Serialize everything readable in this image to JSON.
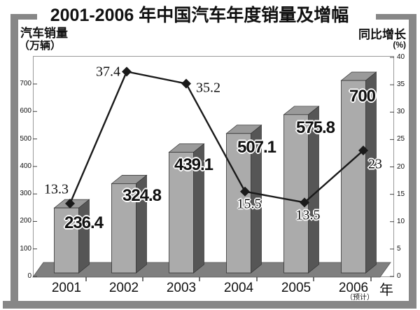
{
  "title": "2001-2006 年中国汽车年度销量及增幅",
  "left_axis": {
    "title": "汽车销量",
    "unit": "（万辆）",
    "ticks": [
      0,
      100,
      200,
      300,
      400,
      500,
      600,
      700
    ]
  },
  "right_axis": {
    "title": "同比增长",
    "unit": "(%)",
    "ticks": [
      0,
      5,
      10,
      15,
      20,
      25,
      30,
      35,
      40
    ]
  },
  "x_axis": {
    "suffix": "年",
    "forecast_note": "（预计）"
  },
  "chart_data": {
    "type": "combo",
    "categories": [
      "2001",
      "2002",
      "2003",
      "2004",
      "2005",
      "2006"
    ],
    "series": [
      {
        "name": "汽车销量（万辆）",
        "type": "bar",
        "axis": "left",
        "values": [
          236.4,
          324.8,
          439.1,
          507.1,
          575.8,
          700
        ],
        "labels": [
          "236.4",
          "324.8",
          "439.1",
          "507.1",
          "575.8",
          "700"
        ]
      },
      {
        "name": "同比增长(%)",
        "type": "line",
        "axis": "right",
        "values": [
          13.3,
          37.4,
          35.2,
          15.5,
          13.5,
          23
        ],
        "labels": [
          "13.3",
          "37.4",
          "35.2",
          "15.5",
          "13.5",
          "23"
        ]
      }
    ],
    "left_ylim": [
      0,
      800
    ],
    "right_ylim": [
      0,
      40
    ],
    "grid": false,
    "legend": false,
    "style": "3d-gray-bars-with-diamond-line",
    "note": "2006 value is a forecast (预计)"
  },
  "colors": {
    "frame": "#878787",
    "bar_front": "#ababab",
    "bar_top": "#9a9a9a",
    "bar_side": "#565656",
    "floor": "#7f7f7f",
    "floor_edge": "#555555",
    "line": "#1a1a1a",
    "plot_border": "#9a9a9a",
    "text": "#111111"
  }
}
